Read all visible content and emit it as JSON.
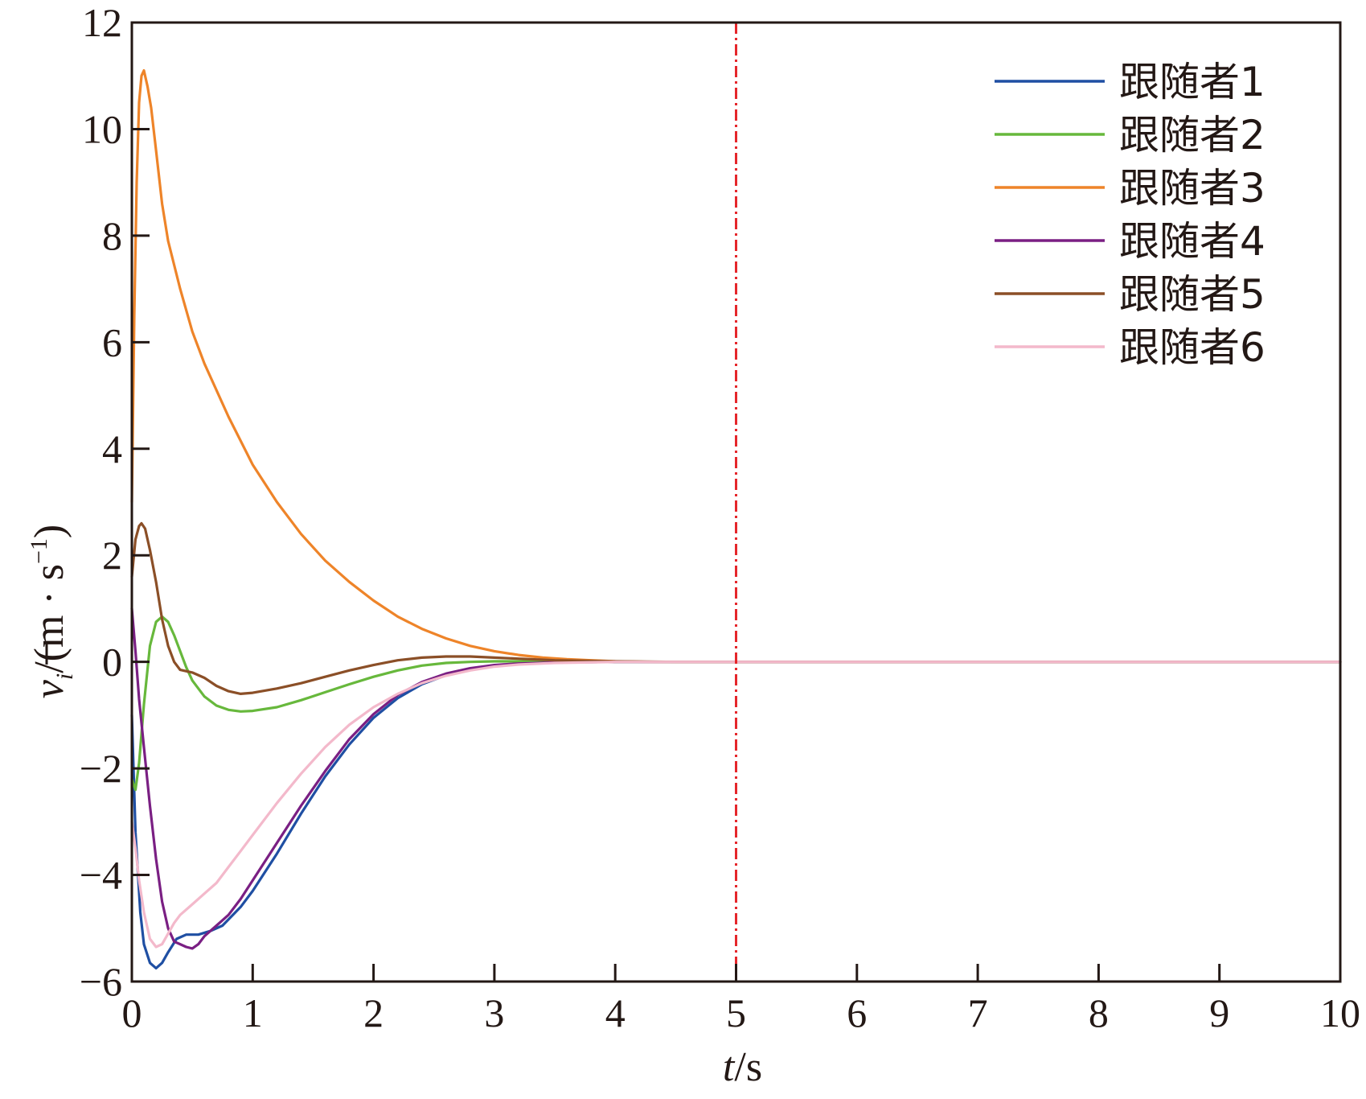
{
  "chart_data": {
    "type": "line",
    "title": "",
    "xlabel": {
      "var": "t",
      "unit": "/s"
    },
    "ylabel": {
      "var": "v",
      "sub": "i",
      "unit_open": "/(m · s",
      "unit_sup": "−1",
      "unit_close": ")"
    },
    "xlim": [
      0,
      10
    ],
    "ylim": [
      -6,
      12
    ],
    "x_ticks": [
      0,
      1,
      2,
      3,
      4,
      5,
      6,
      7,
      8,
      9,
      10
    ],
    "x_tick_labels": [
      "0",
      "1",
      "2",
      "3",
      "4",
      "5",
      "6",
      "7",
      "8",
      "9",
      "10"
    ],
    "y_ticks": [
      -6,
      -4,
      -2,
      0,
      2,
      4,
      6,
      8,
      10,
      12
    ],
    "y_tick_labels": [
      "−6",
      "−4",
      "−2",
      "0",
      "2",
      "4",
      "6",
      "8",
      "10",
      "12"
    ],
    "grid": false,
    "legend_position": "top-right",
    "reference_line": {
      "x": 5,
      "color": "#e5262b",
      "style": "dash-dot"
    },
    "series": [
      {
        "name": "跟随者1",
        "color": "#1f4fa3",
        "points": [
          [
            0,
            -1.0
          ],
          [
            0.03,
            -3.2
          ],
          [
            0.07,
            -4.7
          ],
          [
            0.1,
            -5.3
          ],
          [
            0.15,
            -5.65
          ],
          [
            0.2,
            -5.75
          ],
          [
            0.25,
            -5.65
          ],
          [
            0.3,
            -5.45
          ],
          [
            0.37,
            -5.2
          ],
          [
            0.45,
            -5.12
          ],
          [
            0.55,
            -5.12
          ],
          [
            0.65,
            -5.05
          ],
          [
            0.75,
            -4.95
          ],
          [
            0.9,
            -4.6
          ],
          [
            1.0,
            -4.3
          ],
          [
            1.2,
            -3.6
          ],
          [
            1.4,
            -2.85
          ],
          [
            1.6,
            -2.15
          ],
          [
            1.8,
            -1.55
          ],
          [
            2.0,
            -1.05
          ],
          [
            2.2,
            -0.68
          ],
          [
            2.4,
            -0.42
          ],
          [
            2.6,
            -0.25
          ],
          [
            2.8,
            -0.14
          ],
          [
            3.0,
            -0.08
          ],
          [
            3.2,
            -0.04
          ],
          [
            3.5,
            -0.01
          ],
          [
            4.0,
            0
          ],
          [
            10,
            0
          ]
        ]
      },
      {
        "name": "跟随者2",
        "color": "#67b83c",
        "points": [
          [
            0,
            -2.2
          ],
          [
            0.03,
            -2.4
          ],
          [
            0.06,
            -1.9
          ],
          [
            0.1,
            -0.8
          ],
          [
            0.15,
            0.3
          ],
          [
            0.2,
            0.75
          ],
          [
            0.25,
            0.85
          ],
          [
            0.3,
            0.75
          ],
          [
            0.35,
            0.5
          ],
          [
            0.4,
            0.2
          ],
          [
            0.45,
            -0.1
          ],
          [
            0.5,
            -0.35
          ],
          [
            0.6,
            -0.65
          ],
          [
            0.7,
            -0.82
          ],
          [
            0.8,
            -0.9
          ],
          [
            0.9,
            -0.93
          ],
          [
            1.0,
            -0.92
          ],
          [
            1.2,
            -0.85
          ],
          [
            1.4,
            -0.72
          ],
          [
            1.6,
            -0.57
          ],
          [
            1.8,
            -0.42
          ],
          [
            2.0,
            -0.28
          ],
          [
            2.2,
            -0.16
          ],
          [
            2.4,
            -0.07
          ],
          [
            2.6,
            -0.02
          ],
          [
            2.8,
            0.0
          ],
          [
            3.0,
            0.01
          ],
          [
            3.5,
            0.01
          ],
          [
            4.0,
            0
          ],
          [
            10,
            0
          ]
        ]
      },
      {
        "name": "跟随者3",
        "color": "#ee8429",
        "points": [
          [
            0,
            3.0
          ],
          [
            0.02,
            6.5
          ],
          [
            0.04,
            9.0
          ],
          [
            0.06,
            10.5
          ],
          [
            0.08,
            11.0
          ],
          [
            0.1,
            11.1
          ],
          [
            0.13,
            10.8
          ],
          [
            0.16,
            10.4
          ],
          [
            0.2,
            9.6
          ],
          [
            0.25,
            8.6
          ],
          [
            0.3,
            7.9
          ],
          [
            0.4,
            7.0
          ],
          [
            0.5,
            6.2
          ],
          [
            0.6,
            5.6
          ],
          [
            0.8,
            4.6
          ],
          [
            1.0,
            3.7
          ],
          [
            1.2,
            3.0
          ],
          [
            1.4,
            2.4
          ],
          [
            1.6,
            1.9
          ],
          [
            1.8,
            1.5
          ],
          [
            2.0,
            1.15
          ],
          [
            2.2,
            0.85
          ],
          [
            2.4,
            0.62
          ],
          [
            2.6,
            0.44
          ],
          [
            2.8,
            0.3
          ],
          [
            3.0,
            0.2
          ],
          [
            3.2,
            0.13
          ],
          [
            3.4,
            0.08
          ],
          [
            3.6,
            0.05
          ],
          [
            3.8,
            0.03
          ],
          [
            4.0,
            0.01
          ],
          [
            4.3,
            0
          ],
          [
            10,
            0
          ]
        ]
      },
      {
        "name": "跟随者4",
        "color": "#7a1f83",
        "points": [
          [
            0,
            1.0
          ],
          [
            0.03,
            0.2
          ],
          [
            0.06,
            -0.7
          ],
          [
            0.1,
            -1.6
          ],
          [
            0.15,
            -2.7
          ],
          [
            0.2,
            -3.7
          ],
          [
            0.25,
            -4.5
          ],
          [
            0.3,
            -5.0
          ],
          [
            0.35,
            -5.25
          ],
          [
            0.4,
            -5.3
          ],
          [
            0.45,
            -5.35
          ],
          [
            0.5,
            -5.38
          ],
          [
            0.55,
            -5.3
          ],
          [
            0.6,
            -5.15
          ],
          [
            0.7,
            -4.95
          ],
          [
            0.8,
            -4.75
          ],
          [
            0.9,
            -4.45
          ],
          [
            1.0,
            -4.1
          ],
          [
            1.2,
            -3.4
          ],
          [
            1.4,
            -2.7
          ],
          [
            1.6,
            -2.05
          ],
          [
            1.8,
            -1.45
          ],
          [
            2.0,
            -0.98
          ],
          [
            2.2,
            -0.62
          ],
          [
            2.4,
            -0.38
          ],
          [
            2.6,
            -0.22
          ],
          [
            2.8,
            -0.12
          ],
          [
            3.0,
            -0.06
          ],
          [
            3.2,
            -0.03
          ],
          [
            3.5,
            -0.01
          ],
          [
            4.0,
            0
          ],
          [
            10,
            0
          ]
        ]
      },
      {
        "name": "跟随者5",
        "color": "#8b4f27",
        "points": [
          [
            0,
            1.6
          ],
          [
            0.03,
            2.3
          ],
          [
            0.06,
            2.55
          ],
          [
            0.08,
            2.6
          ],
          [
            0.11,
            2.5
          ],
          [
            0.15,
            2.1
          ],
          [
            0.2,
            1.5
          ],
          [
            0.25,
            0.8
          ],
          [
            0.3,
            0.3
          ],
          [
            0.35,
            0.0
          ],
          [
            0.4,
            -0.15
          ],
          [
            0.5,
            -0.2
          ],
          [
            0.6,
            -0.3
          ],
          [
            0.7,
            -0.45
          ],
          [
            0.8,
            -0.55
          ],
          [
            0.9,
            -0.6
          ],
          [
            1.0,
            -0.58
          ],
          [
            1.2,
            -0.5
          ],
          [
            1.4,
            -0.4
          ],
          [
            1.6,
            -0.28
          ],
          [
            1.8,
            -0.16
          ],
          [
            2.0,
            -0.06
          ],
          [
            2.2,
            0.03
          ],
          [
            2.4,
            0.08
          ],
          [
            2.6,
            0.1
          ],
          [
            2.8,
            0.1
          ],
          [
            3.0,
            0.08
          ],
          [
            3.2,
            0.06
          ],
          [
            3.5,
            0.03
          ],
          [
            4.0,
            0.01
          ],
          [
            4.5,
            0
          ],
          [
            10,
            0
          ]
        ]
      },
      {
        "name": "跟随者6",
        "color": "#f3b9cb",
        "points": [
          [
            0,
            -3.0
          ],
          [
            0.03,
            -3.5
          ],
          [
            0.06,
            -4.1
          ],
          [
            0.1,
            -4.7
          ],
          [
            0.15,
            -5.2
          ],
          [
            0.2,
            -5.35
          ],
          [
            0.25,
            -5.3
          ],
          [
            0.3,
            -5.1
          ],
          [
            0.35,
            -4.9
          ],
          [
            0.4,
            -4.75
          ],
          [
            0.5,
            -4.55
          ],
          [
            0.6,
            -4.35
          ],
          [
            0.7,
            -4.15
          ],
          [
            0.8,
            -3.85
          ],
          [
            0.9,
            -3.55
          ],
          [
            1.0,
            -3.25
          ],
          [
            1.2,
            -2.65
          ],
          [
            1.4,
            -2.1
          ],
          [
            1.6,
            -1.6
          ],
          [
            1.8,
            -1.18
          ],
          [
            2.0,
            -0.85
          ],
          [
            2.2,
            -0.6
          ],
          [
            2.4,
            -0.4
          ],
          [
            2.6,
            -0.26
          ],
          [
            2.8,
            -0.16
          ],
          [
            3.0,
            -0.09
          ],
          [
            3.2,
            -0.05
          ],
          [
            3.5,
            -0.02
          ],
          [
            4.0,
            0
          ],
          [
            10,
            0
          ]
        ]
      }
    ]
  }
}
